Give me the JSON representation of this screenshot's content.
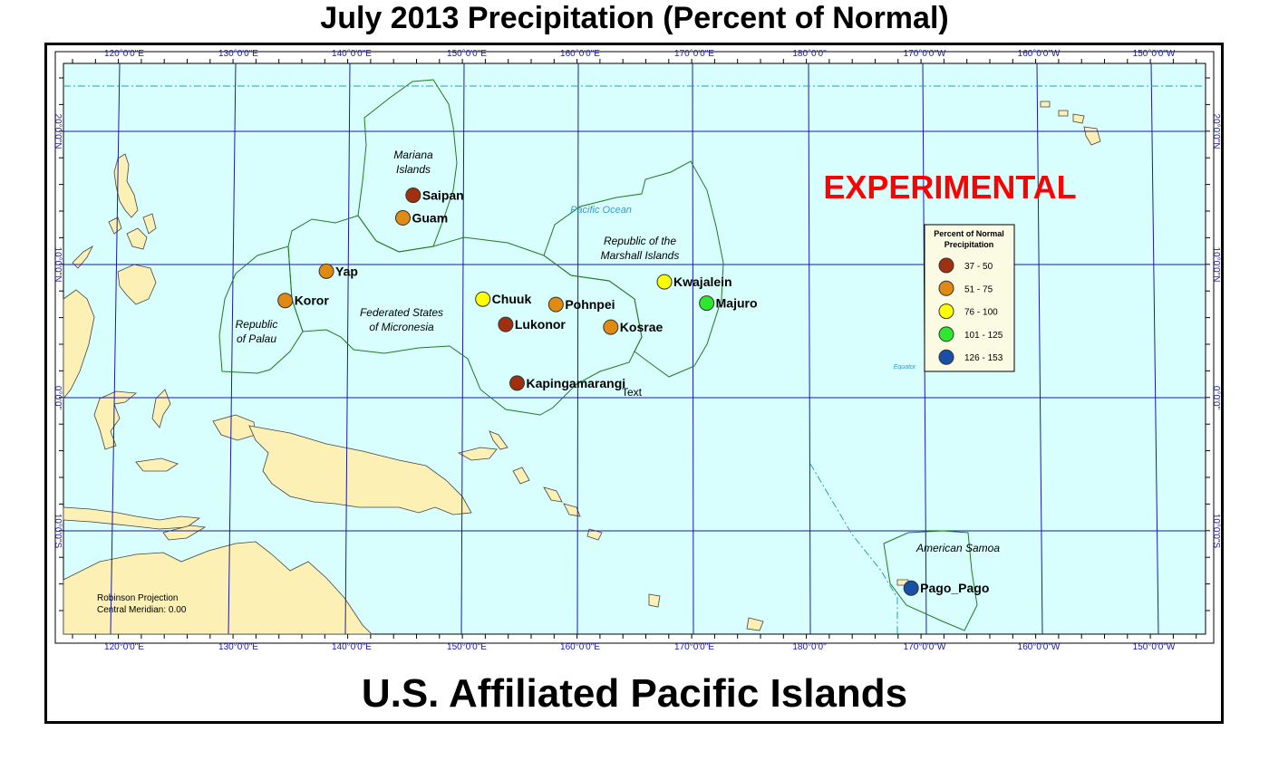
{
  "title": "July 2013 Precipitation (Percent of Normal)",
  "subtitle": "U.S. Affiliated Pacific Islands",
  "experimental_label": "EXPERIMENTAL",
  "ocean_labels": {
    "pacific": "Pacific Ocean",
    "equator": "Equator"
  },
  "projection": {
    "line1": "Robinson Projection",
    "line2": "Central Meridian: 0.00"
  },
  "stray_text": "Text",
  "longitude_labels": [
    "120°0'0\"E",
    "130°0'0\"E",
    "140°0'0\"E",
    "150°0'0\"E",
    "160°0'0\"E",
    "170°0'0\"E",
    "180°0'0\"",
    "170°0'0\"W",
    "160°0'0\"W",
    "150°0'0\"W"
  ],
  "latitude_labels": [
    "20°0'0\"N",
    "10°0'0\"N",
    "0°0'0\"",
    "10°0'0\"S"
  ],
  "regions": {
    "mariana": [
      "Mariana",
      "Islands"
    ],
    "palau": [
      "Republic",
      "of Palau"
    ],
    "fsm": [
      "Federated States",
      "of Micronesia"
    ],
    "marshall": [
      "Republic of the",
      "Marshall Islands"
    ],
    "samoa": "American Samoa"
  },
  "legend": {
    "title": [
      "Percent of Normal",
      "Precipitation"
    ],
    "items": [
      {
        "label": "37 - 50",
        "color": "#a0300f"
      },
      {
        "label": "51 - 75",
        "color": "#e08a12"
      },
      {
        "label": "76 - 100",
        "color": "#ffff00"
      },
      {
        "label": "101 - 125",
        "color": "#2ee82e"
      },
      {
        "label": "126 - 153",
        "color": "#1a4fa8"
      }
    ]
  },
  "stations": [
    {
      "name": "Saipan",
      "lon": 145.7,
      "lat": 15.2,
      "class": 0
    },
    {
      "name": "Guam",
      "lon": 144.8,
      "lat": 13.5,
      "class": 1
    },
    {
      "name": "Yap",
      "lon": 138.1,
      "lat": 9.5,
      "class": 1
    },
    {
      "name": "Koror",
      "lon": 134.5,
      "lat": 7.3,
      "class": 1
    },
    {
      "name": "Chuuk",
      "lon": 151.8,
      "lat": 7.4,
      "class": 2
    },
    {
      "name": "Pohnpei",
      "lon": 158.2,
      "lat": 7.0,
      "class": 1
    },
    {
      "name": "Lukonor",
      "lon": 153.8,
      "lat": 5.5,
      "class": 0
    },
    {
      "name": "Kosrae",
      "lon": 163.0,
      "lat": 5.3,
      "class": 1
    },
    {
      "name": "Kwajalein",
      "lon": 167.7,
      "lat": 8.7,
      "class": 2
    },
    {
      "name": "Majuro",
      "lon": 171.4,
      "lat": 7.1,
      "class": 3
    },
    {
      "name": "Kapingamarangi",
      "lon": 154.8,
      "lat": 1.1,
      "class": 0
    },
    {
      "name": "Pago_Pago",
      "lon": -170.7,
      "lat": -14.3,
      "class": 4
    }
  ]
}
